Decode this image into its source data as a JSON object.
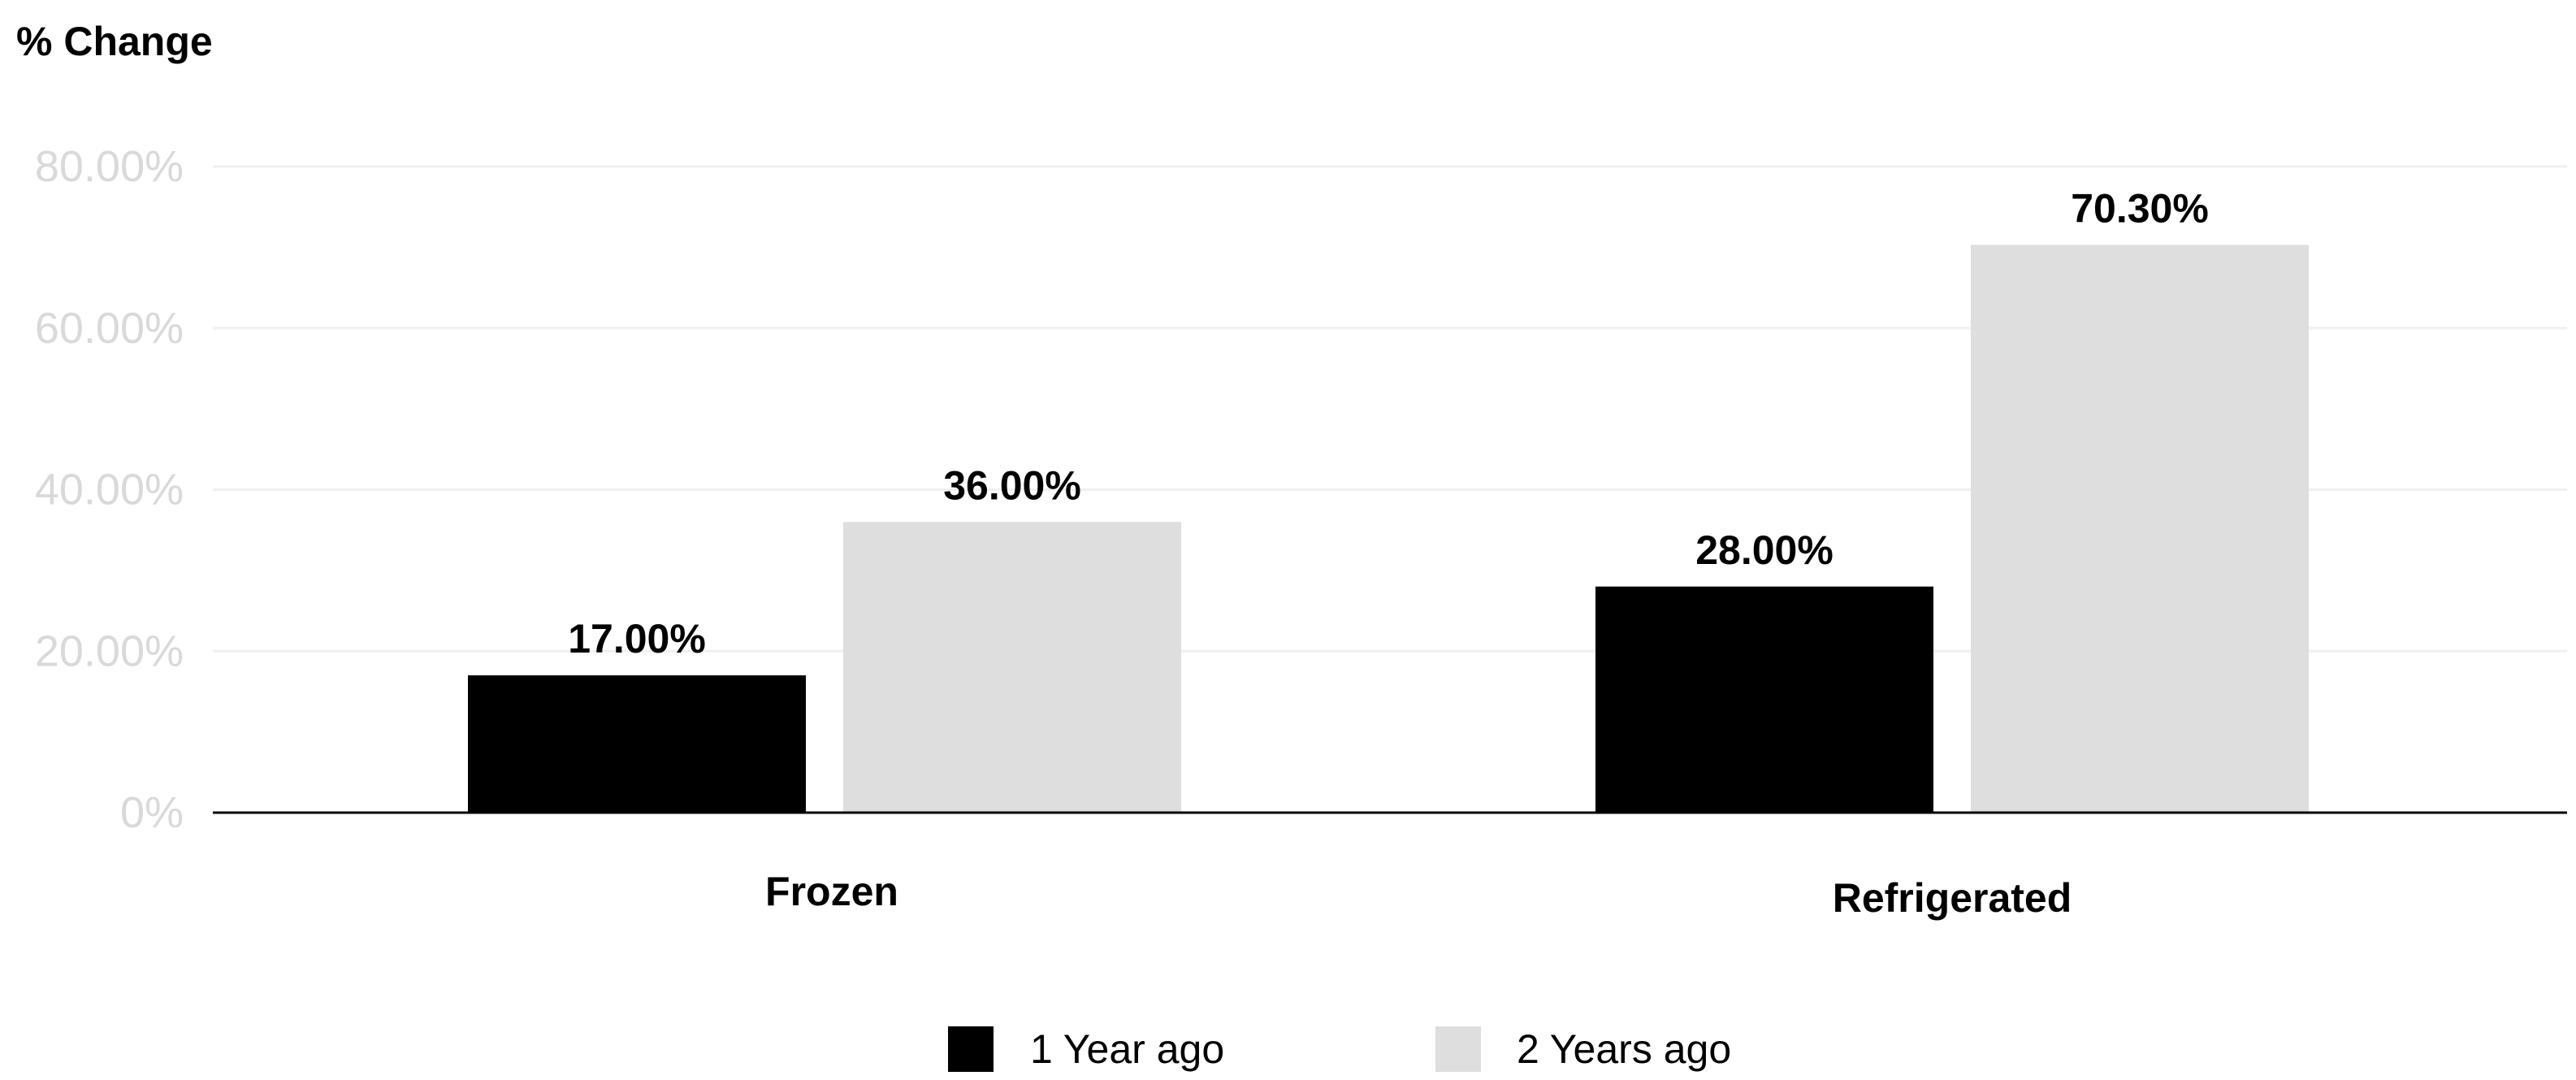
{
  "chart_data": {
    "type": "bar",
    "title": "% Change",
    "xlabel": "",
    "ylabel": "",
    "categories": [
      "Frozen",
      "Refrigerated"
    ],
    "series": [
      {
        "name": "1 Year ago",
        "values": [
          17.0,
          28.0
        ],
        "labels": [
          "17.00%",
          "28.00%"
        ],
        "color": "#000000"
      },
      {
        "name": "2 Years ago",
        "values": [
          36.0,
          70.3
        ],
        "labels": [
          "36.00%",
          "70.30%"
        ],
        "color": "#dedede"
      }
    ],
    "ylim": [
      0,
      80
    ],
    "yticks": [
      0,
      20,
      40,
      60,
      80
    ],
    "ytick_labels": [
      "0%",
      "20.00%",
      "40.00%",
      "60.00%",
      "80.00%"
    ],
    "grid": true,
    "legend_position": "bottom"
  }
}
